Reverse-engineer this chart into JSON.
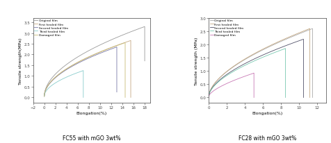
{
  "left": {
    "title": "FC55 with mGO 3wt%",
    "xlabel": "Elongation(%)",
    "ylabel": "Tensile strength(MPa)",
    "xlim": [
      -2,
      19
    ],
    "ylim": [
      -0.25,
      3.7
    ],
    "xticks": [
      -2,
      0,
      2,
      4,
      6,
      8,
      10,
      12,
      14,
      16,
      18
    ],
    "yticks": [
      0.0,
      0.5,
      1.0,
      1.5,
      2.0,
      2.5,
      3.0,
      3.5
    ],
    "curves": [
      {
        "label": "Original film",
        "color": "#999999",
        "rise_x0": 0,
        "rise_x1": 18,
        "rise_y0": 0.05,
        "rise_y1": 3.3,
        "drop_y": 1.7,
        "power": 0.52
      },
      {
        "label": "First healed film",
        "color": "#c4a882",
        "rise_x0": 0,
        "rise_x1": 15.5,
        "rise_y0": 0.05,
        "rise_y1": 2.65,
        "drop_y": 0.0,
        "power": 0.52
      },
      {
        "label": "Second healed film",
        "color": "#7878a8",
        "rise_x0": 0,
        "rise_x1": 13.0,
        "rise_y0": 0.05,
        "rise_y1": 2.35,
        "drop_y": 0.25,
        "power": 0.52
      },
      {
        "label": "Third healed film",
        "color": "#88cccc",
        "rise_x0": 0,
        "rise_x1": 7.0,
        "rise_y0": 0.05,
        "rise_y1": 1.25,
        "drop_y": 0.0,
        "power": 0.52
      },
      {
        "label": "Damaged film",
        "color": "#c8bc78",
        "rise_x0": 0,
        "rise_x1": 14.5,
        "rise_y0": 0.05,
        "rise_y1": 2.55,
        "drop_y": 0.0,
        "power": 0.52
      }
    ]
  },
  "right": {
    "title": "FC28 with mGO 3wt%",
    "xlabel": "Elongation(%)",
    "ylabel": "Tensile strength (MPa)",
    "xlim": [
      0,
      13
    ],
    "ylim": [
      -0.2,
      3.0
    ],
    "xticks": [
      0,
      2,
      4,
      6,
      8,
      10,
      12
    ],
    "yticks": [
      0.0,
      0.5,
      1.0,
      1.5,
      2.0,
      2.5,
      3.0
    ],
    "curves": [
      {
        "label": "Original film",
        "color": "#aaaaaa",
        "rise_x0": 0,
        "rise_x1": 11.5,
        "rise_y0": 0.05,
        "rise_y1": 2.6,
        "drop_y": 0.0,
        "power": 0.58
      },
      {
        "label": "First healed film",
        "color": "#c4a882",
        "rise_x0": 0,
        "rise_x1": 11.2,
        "rise_y0": 0.05,
        "rise_y1": 2.6,
        "drop_y": 0.0,
        "power": 0.58
      },
      {
        "label": "Second healed film",
        "color": "#505068",
        "rise_x0": 0,
        "rise_x1": 10.5,
        "rise_y0": 0.05,
        "rise_y1": 2.2,
        "drop_y": 0.0,
        "power": 0.58
      },
      {
        "label": "Third healed film",
        "color": "#78c8b0",
        "rise_x0": 0,
        "rise_x1": 8.5,
        "rise_y0": 0.05,
        "rise_y1": 1.85,
        "drop_y": 0.0,
        "power": 0.58
      },
      {
        "label": "Damaged film",
        "color": "#c878b4",
        "rise_x0": 0,
        "rise_x1": 5.0,
        "rise_y0": 0.05,
        "rise_y1": 0.92,
        "drop_y": 0.0,
        "power": 0.65
      }
    ]
  }
}
